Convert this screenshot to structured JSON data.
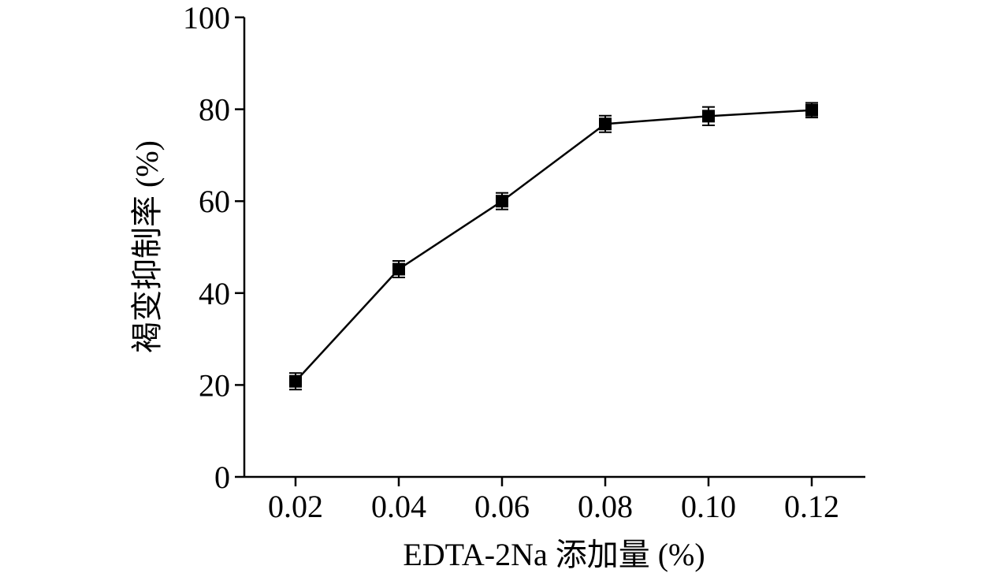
{
  "chart_data": {
    "type": "line",
    "title": "",
    "xlabel": "EDTA-2Na 添加量 (%)",
    "ylabel": "褐变抑制率 (%)",
    "ylim": [
      0,
      100
    ],
    "y_ticks": [
      "0",
      "20",
      "40",
      "60",
      "80",
      "100"
    ],
    "categories": [
      "0.02",
      "0.04",
      "0.06",
      "0.08",
      "0.10",
      "0.12"
    ],
    "series": [
      {
        "values": [
          20.8,
          45.2,
          60.0,
          76.8,
          78.5,
          79.8
        ],
        "errors": [
          1.8,
          1.8,
          1.8,
          1.8,
          2.0,
          1.6
        ],
        "color": "#000000",
        "marker": "square"
      }
    ],
    "grid": false,
    "legend": "none"
  }
}
